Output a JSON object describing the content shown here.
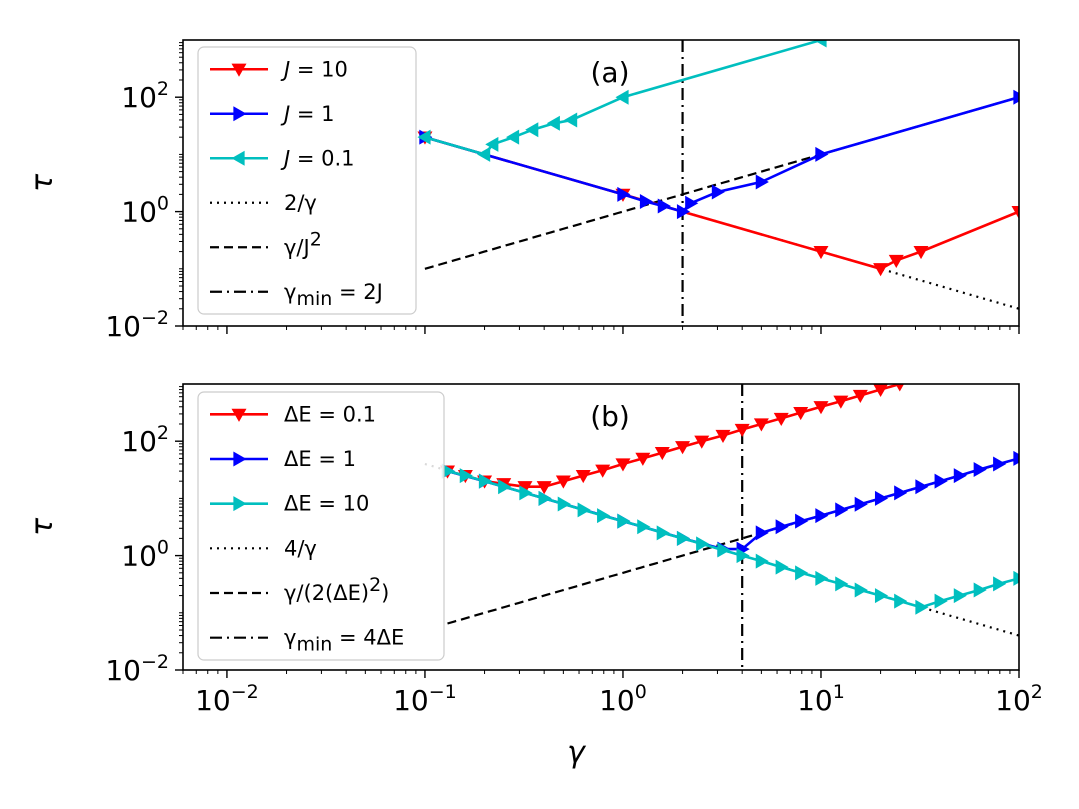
{
  "chart_data": [
    {
      "type": "line",
      "panel_label": "(a)",
      "xscale": "log",
      "yscale": "log",
      "xlim": [
        0.006,
        100
      ],
      "ylim": [
        0.01,
        1000
      ],
      "xlabel": "",
      "ylabel": "τ",
      "xtick_values": [
        0.01,
        0.1,
        1,
        10,
        100
      ],
      "xtick_labels_visible": false,
      "ytick_values": [
        0.01,
        1,
        100
      ],
      "ytick_labels": [
        {
          "base": "10",
          "exp": "−2"
        },
        {
          "base": "10",
          "exp": "0"
        },
        {
          "base": "10",
          "exp": "2"
        }
      ],
      "legend_position": "upper-left",
      "series": [
        {
          "name": "J = 10",
          "legend_base": "J",
          "legend_rest": " = 10",
          "color": "#ff0000",
          "marker": "triangle-down",
          "x": [
            0.1,
            1,
            10,
            20,
            24,
            32,
            100
          ],
          "y": [
            20,
            2,
            0.2,
            0.1,
            0.14,
            0.2,
            1.0
          ]
        },
        {
          "name": "J = 1",
          "legend_base": "J",
          "legend_rest": " = 1",
          "color": "#0000ff",
          "marker": "triangle-right",
          "x": [
            0.1,
            1,
            1.3,
            1.6,
            2,
            2.2,
            3,
            5,
            10,
            100
          ],
          "y": [
            20,
            2,
            1.5,
            1.25,
            1.0,
            1.4,
            2.2,
            3.3,
            10,
            100
          ]
        },
        {
          "name": "J = 0.1",
          "legend_base": "J",
          "legend_rest": " = 0.1",
          "color": "#00bfbf",
          "marker": "triangle-left",
          "x": [
            0.1,
            0.2,
            0.22,
            0.28,
            0.35,
            0.45,
            0.55,
            1,
            10
          ],
          "y": [
            20,
            10,
            15,
            20,
            27,
            35,
            40,
            100,
            1000
          ]
        }
      ],
      "reference_lines": [
        {
          "name": "2/γ",
          "legend": "2/γ",
          "style": "dotted",
          "formula": "2/x"
        },
        {
          "name": "γ/J^2",
          "legend_pre": "γ/J",
          "legend_sup": "2",
          "style": "dashed",
          "formula": "x (J = 1)"
        },
        {
          "name": "γ_min = 2J",
          "legend_base": "γ",
          "legend_sub": "min",
          "legend_rest": " = 2J",
          "style": "dashdot",
          "x": 2
        }
      ]
    },
    {
      "type": "line",
      "panel_label": "(b)",
      "xscale": "log",
      "yscale": "log",
      "xlim": [
        0.006,
        100
      ],
      "ylim": [
        0.01,
        1000
      ],
      "xlabel": "γ",
      "ylabel": "τ",
      "xtick_values": [
        0.01,
        0.1,
        1,
        10,
        100
      ],
      "xtick_labels": [
        {
          "base": "10",
          "exp": "−2"
        },
        {
          "base": "10",
          "exp": "−1"
        },
        {
          "base": "10",
          "exp": "0"
        },
        {
          "base": "10",
          "exp": "1"
        },
        {
          "base": "10",
          "exp": "2"
        }
      ],
      "ytick_values": [
        0.01,
        1,
        100
      ],
      "ytick_labels": [
        {
          "base": "10",
          "exp": "−2"
        },
        {
          "base": "10",
          "exp": "0"
        },
        {
          "base": "10",
          "exp": "2"
        }
      ],
      "legend_position": "upper-left",
      "series": [
        {
          "name": "ΔE = 0.1",
          "legend_base": "ΔE",
          "legend_rest": " = 0.1",
          "color": "#ff0000",
          "marker": "triangle-down",
          "x": [
            0.13,
            0.16,
            0.2,
            0.25,
            0.32,
            0.4,
            0.5,
            0.63,
            0.79,
            1,
            1.26,
            1.58,
            2,
            2.5,
            3.2,
            4,
            5,
            6.3,
            7.9,
            10,
            12.6,
            15.8,
            20,
            25
          ],
          "y": [
            30,
            25,
            20,
            18,
            16,
            16,
            20,
            25,
            31,
            40,
            50,
            63,
            80,
            100,
            126,
            160,
            200,
            250,
            316,
            400,
            500,
            630,
            800,
            1000
          ]
        },
        {
          "name": "ΔE = 1",
          "legend_base": "ΔE",
          "legend_rest": " = 1",
          "color": "#0000ff",
          "marker": "triangle-right",
          "x": [
            0.13,
            0.2,
            0.4,
            1,
            2,
            3.2,
            4,
            5,
            6.3,
            7.9,
            10,
            12.6,
            15.8,
            20,
            25,
            32,
            40,
            50,
            63,
            79,
            100
          ],
          "y": [
            30,
            20,
            10,
            4,
            2,
            1.3,
            1.3,
            2.5,
            3.2,
            4,
            5,
            6.3,
            7.9,
            10,
            12.5,
            16,
            20,
            25,
            32,
            40,
            50
          ]
        },
        {
          "name": "ΔE = 10",
          "legend_base": "ΔE",
          "legend_rest": " = 10",
          "color": "#00bfbf",
          "marker": "triangle-right",
          "x": [
            0.13,
            0.16,
            0.2,
            0.25,
            0.32,
            0.4,
            0.5,
            0.63,
            0.79,
            1,
            1.26,
            1.58,
            2,
            2.5,
            3.2,
            4,
            5,
            6.3,
            7.9,
            10,
            12.6,
            15.8,
            20,
            25,
            32,
            40,
            50,
            63,
            79,
            100
          ],
          "y": [
            30,
            25,
            20,
            16,
            12.5,
            10,
            8,
            6.3,
            5,
            4,
            3.2,
            2.5,
            2,
            1.6,
            1.25,
            1.0,
            0.8,
            0.63,
            0.5,
            0.4,
            0.32,
            0.25,
            0.2,
            0.16,
            0.125,
            0.16,
            0.2,
            0.25,
            0.32,
            0.4
          ]
        }
      ],
      "reference_lines": [
        {
          "name": "4/γ",
          "legend": "4/γ",
          "style": "dotted",
          "formula": "4/x"
        },
        {
          "name": "γ/(2(ΔE)^2)",
          "legend_pre": "γ/(2(ΔE)",
          "legend_sup": "2",
          "legend_post": ")",
          "style": "dashed",
          "formula": "x/2 (ΔE = 1)"
        },
        {
          "name": "γ_min = 4ΔE",
          "legend_base": "γ",
          "legend_sub": "min",
          "legend_rest": " = 4ΔE",
          "style": "dashdot",
          "x": 4
        }
      ]
    }
  ]
}
